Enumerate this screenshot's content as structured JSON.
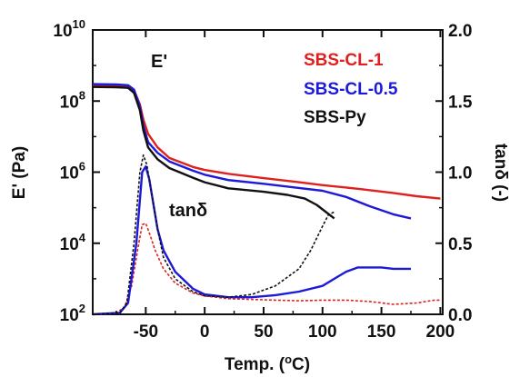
{
  "chart_data": {
    "type": "line",
    "xlabel": "Temp. (",
    "xlabel_sup": "o",
    "xlabel_end": "C)",
    "ylabel_left_main": "E' (Pa)",
    "ylabel_right_main": "tan",
    "ylabel_right_greek": "δ",
    "ylabel_right_unit": " (-)",
    "xlim": [
      -95,
      202
    ],
    "ylim_left": [
      100,
      10000000000
    ],
    "ylim_right": [
      0.0,
      2.0
    ],
    "left_scale": "log",
    "x_ticks": [
      {
        "v": -50,
        "label": "-50"
      },
      {
        "v": 0,
        "label": "0"
      },
      {
        "v": 50,
        "label": "50"
      },
      {
        "v": 100,
        "label": "100"
      },
      {
        "v": 150,
        "label": "150"
      },
      {
        "v": 200,
        "label": "200"
      }
    ],
    "left_ticks": [
      {
        "v": 100,
        "base": "10",
        "exp": "2"
      },
      {
        "v": 10000,
        "base": "10",
        "exp": "4"
      },
      {
        "v": 1000000,
        "base": "10",
        "exp": "6"
      },
      {
        "v": 100000000,
        "base": "10",
        "exp": "8"
      },
      {
        "v": 10000000000,
        "base": "10",
        "exp": "10"
      }
    ],
    "right_ticks": [
      {
        "v": 0.0,
        "label": "0.0"
      },
      {
        "v": 0.5,
        "label": "0.5"
      },
      {
        "v": 1.0,
        "label": "1.0"
      },
      {
        "v": 1.5,
        "label": "1.5"
      },
      {
        "v": 2.0,
        "label": "2.0"
      }
    ],
    "annotations": {
      "storage_modulus": "E'",
      "tan_delta_main": "tan",
      "tan_delta_greek": "δ"
    },
    "legend_position": "top-right",
    "series": [
      {
        "name": "SBS-CL-1",
        "color": "#e0201e",
        "quantity": "E'",
        "axis": "left",
        "points": [
          [
            -95,
            280000000
          ],
          [
            -75,
            275000000
          ],
          [
            -65,
            265000000
          ],
          [
            -60,
            200000000
          ],
          [
            -55,
            80000000
          ],
          [
            -52,
            30000000
          ],
          [
            -48,
            12000000
          ],
          [
            -40,
            5000000
          ],
          [
            -30,
            2500000
          ],
          [
            -10,
            1400000
          ],
          [
            0,
            1150000
          ],
          [
            20,
            900000
          ],
          [
            50,
            680000
          ],
          [
            80,
            520000
          ],
          [
            100,
            430000
          ],
          [
            130,
            340000
          ],
          [
            160,
            260000
          ],
          [
            180,
            210000
          ],
          [
            200,
            180000
          ]
        ]
      },
      {
        "name": "SBS-CL-0.5",
        "color": "#1c1ad8",
        "quantity": "E'",
        "axis": "left",
        "points": [
          [
            -95,
            300000000
          ],
          [
            -75,
            295000000
          ],
          [
            -65,
            280000000
          ],
          [
            -60,
            210000000
          ],
          [
            -55,
            70000000
          ],
          [
            -52,
            20000000
          ],
          [
            -48,
            7000000
          ],
          [
            -40,
            3500000
          ],
          [
            -30,
            2000000
          ],
          [
            -10,
            1100000
          ],
          [
            0,
            850000
          ],
          [
            20,
            600000
          ],
          [
            50,
            470000
          ],
          [
            80,
            360000
          ],
          [
            100,
            300000
          ],
          [
            120,
            200000
          ],
          [
            140,
            110000
          ],
          [
            160,
            65000
          ],
          [
            175,
            50000
          ]
        ]
      },
      {
        "name": "SBS-Py",
        "color": "#111111",
        "quantity": "E'",
        "axis": "left",
        "points": [
          [
            -95,
            250000000
          ],
          [
            -75,
            245000000
          ],
          [
            -65,
            235000000
          ],
          [
            -60,
            170000000
          ],
          [
            -55,
            55000000
          ],
          [
            -52,
            15000000
          ],
          [
            -48,
            5000000
          ],
          [
            -40,
            2300000
          ],
          [
            -30,
            1300000
          ],
          [
            -10,
            700000
          ],
          [
            0,
            520000
          ],
          [
            20,
            350000
          ],
          [
            50,
            280000
          ],
          [
            70,
            230000
          ],
          [
            85,
            180000
          ],
          [
            95,
            120000
          ],
          [
            103,
            75000
          ],
          [
            110,
            50000
          ]
        ]
      },
      {
        "name": "SBS-CL-1",
        "color": "#e0201e",
        "quantity": "tan delta",
        "axis": "right",
        "dashed": true,
        "points": [
          [
            -95,
            0.0
          ],
          [
            -75,
            0.01
          ],
          [
            -68,
            0.05
          ],
          [
            -62,
            0.2
          ],
          [
            -57,
            0.45
          ],
          [
            -53,
            0.63
          ],
          [
            -50,
            0.64
          ],
          [
            -46,
            0.55
          ],
          [
            -42,
            0.45
          ],
          [
            -35,
            0.32
          ],
          [
            -25,
            0.22
          ],
          [
            -10,
            0.15
          ],
          [
            0,
            0.13
          ],
          [
            20,
            0.11
          ],
          [
            40,
            0.105
          ],
          [
            60,
            0.1
          ],
          [
            80,
            0.095
          ],
          [
            100,
            0.1
          ],
          [
            120,
            0.1
          ],
          [
            140,
            0.09
          ],
          [
            160,
            0.07
          ],
          [
            180,
            0.08
          ],
          [
            195,
            0.1
          ],
          [
            200,
            0.1
          ]
        ]
      },
      {
        "name": "SBS-CL-0.5",
        "color": "#1c1ad8",
        "quantity": "tan delta",
        "axis": "right",
        "points": [
          [
            -95,
            0.0
          ],
          [
            -72,
            0.01
          ],
          [
            -65,
            0.08
          ],
          [
            -58,
            0.5
          ],
          [
            -53,
            1.0
          ],
          [
            -50,
            1.04
          ],
          [
            -47,
            0.95
          ],
          [
            -44,
            0.8
          ],
          [
            -40,
            0.6
          ],
          [
            -35,
            0.45
          ],
          [
            -25,
            0.3
          ],
          [
            -10,
            0.18
          ],
          [
            0,
            0.14
          ],
          [
            20,
            0.12
          ],
          [
            40,
            0.12
          ],
          [
            60,
            0.135
          ],
          [
            80,
            0.16
          ],
          [
            100,
            0.2
          ],
          [
            110,
            0.25
          ],
          [
            120,
            0.3
          ],
          [
            130,
            0.33
          ],
          [
            150,
            0.33
          ],
          [
            160,
            0.32
          ],
          [
            175,
            0.32
          ]
        ]
      },
      {
        "name": "SBS-Py",
        "color": "#111111",
        "quantity": "tan delta",
        "axis": "right",
        "dashed": true,
        "points": [
          [
            -95,
            0.0
          ],
          [
            -72,
            0.01
          ],
          [
            -66,
            0.08
          ],
          [
            -60,
            0.5
          ],
          [
            -55,
            1.0
          ],
          [
            -52,
            1.12
          ],
          [
            -49,
            1.05
          ],
          [
            -45,
            0.85
          ],
          [
            -40,
            0.6
          ],
          [
            -35,
            0.4
          ],
          [
            -25,
            0.25
          ],
          [
            -10,
            0.16
          ],
          [
            0,
            0.13
          ],
          [
            20,
            0.12
          ],
          [
            40,
            0.14
          ],
          [
            60,
            0.2
          ],
          [
            80,
            0.32
          ],
          [
            90,
            0.45
          ],
          [
            100,
            0.62
          ],
          [
            105,
            0.7
          ],
          [
            110,
            0.72
          ]
        ]
      }
    ]
  }
}
